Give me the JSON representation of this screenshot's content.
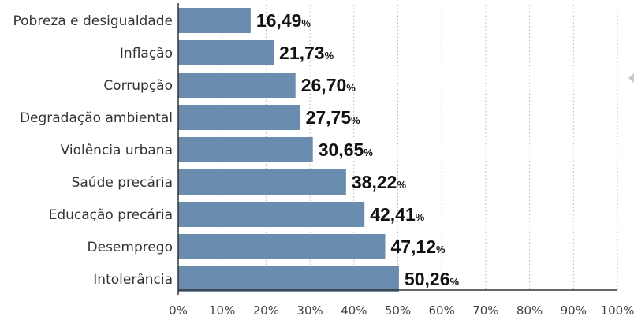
{
  "chart_data": {
    "type": "bar",
    "orientation": "horizontal",
    "categories": [
      "Pobreza e desigualdade",
      "Inflação",
      "Corrupção",
      "Degradação ambiental",
      "Violência urbana",
      "Saúde precária",
      "Educação precária",
      "Desemprego",
      "Intolerância"
    ],
    "values": [
      16.49,
      21.73,
      26.7,
      27.75,
      30.65,
      38.22,
      42.41,
      47.12,
      50.26
    ],
    "value_labels": [
      "16,49",
      "21,73",
      "26,70",
      "27,75",
      "30,65",
      "38,22",
      "42,41",
      "47,12",
      "50,26"
    ],
    "value_suffix": "%",
    "xlim": [
      0,
      100
    ],
    "xticks": [
      "0%",
      "10%",
      "20%",
      "30%",
      "40%",
      "50%",
      "60%",
      "70%",
      "80%",
      "90%",
      "100%"
    ],
    "title": "",
    "xlabel": "",
    "ylabel": "",
    "grid": "vertical dotted",
    "colors": {
      "bar": "#6a8daf",
      "grid": "#b5b5b5",
      "axis": "#333333"
    }
  }
}
